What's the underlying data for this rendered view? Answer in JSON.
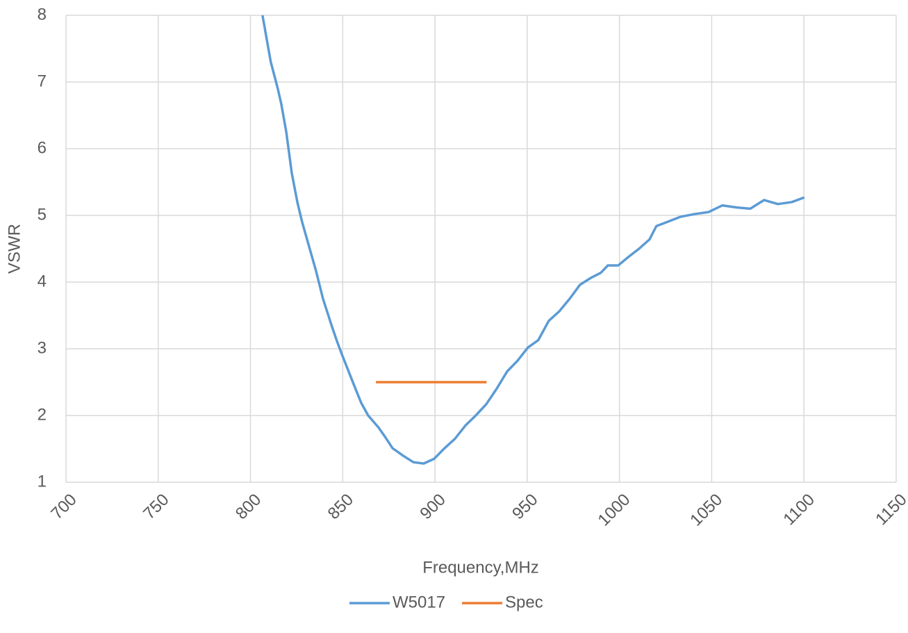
{
  "chart_data": {
    "type": "line",
    "xlabel": "Frequency,MHz",
    "ylabel": "VSWR",
    "xlim": [
      700,
      1150
    ],
    "xticks": [
      700,
      750,
      800,
      850,
      900,
      950,
      1000,
      1050,
      1100,
      1150
    ],
    "ylim": [
      1,
      8
    ],
    "yticks": [
      1,
      2,
      3,
      4,
      5,
      6,
      7,
      8
    ],
    "grid": true,
    "legend": "bottom",
    "series": [
      {
        "name": "W5017",
        "color": "#5b9bd5",
        "x": [
          806.5,
          811,
          814.8,
          816.7,
          819.4,
          822.4,
          825.4,
          828,
          831.8,
          835.5,
          839.3,
          844.2,
          846.8,
          849.5,
          852.5,
          856.2,
          860,
          863.8,
          869.4,
          873.2,
          877,
          882.6,
          888.3,
          893.9,
          899.5,
          905.2,
          910.8,
          916.5,
          922.1,
          927.8,
          933.4,
          939.1,
          944.7,
          950.4,
          956,
          961.7,
          967.3,
          973,
          978.6,
          984.3,
          989.9,
          993.7,
          999.3,
          1005,
          1010.6,
          1016.3,
          1020,
          1025.7,
          1033.2,
          1040.7,
          1048.3,
          1055.8,
          1063.3,
          1070.9,
          1078.4,
          1085.9,
          1093.4,
          1100.2
        ],
        "values": [
          8.0,
          7.3,
          6.9,
          6.67,
          6.25,
          5.63,
          5.2,
          4.9,
          4.53,
          4.17,
          3.75,
          3.33,
          3.12,
          2.92,
          2.71,
          2.45,
          2.19,
          2.0,
          1.82,
          1.67,
          1.51,
          1.4,
          1.3,
          1.28,
          1.35,
          1.51,
          1.65,
          1.85,
          2.0,
          2.17,
          2.4,
          2.66,
          2.82,
          3.02,
          3.13,
          3.42,
          3.56,
          3.75,
          3.96,
          4.06,
          4.14,
          4.25,
          4.25,
          4.38,
          4.5,
          4.64,
          4.84,
          4.9,
          4.98,
          5.02,
          5.05,
          5.15,
          5.12,
          5.1,
          5.23,
          5.17,
          5.2,
          5.27
        ]
      },
      {
        "name": "Spec",
        "color": "#ed7d31",
        "x": [
          868,
          928
        ],
        "values": [
          2.5,
          2.5
        ]
      }
    ]
  }
}
